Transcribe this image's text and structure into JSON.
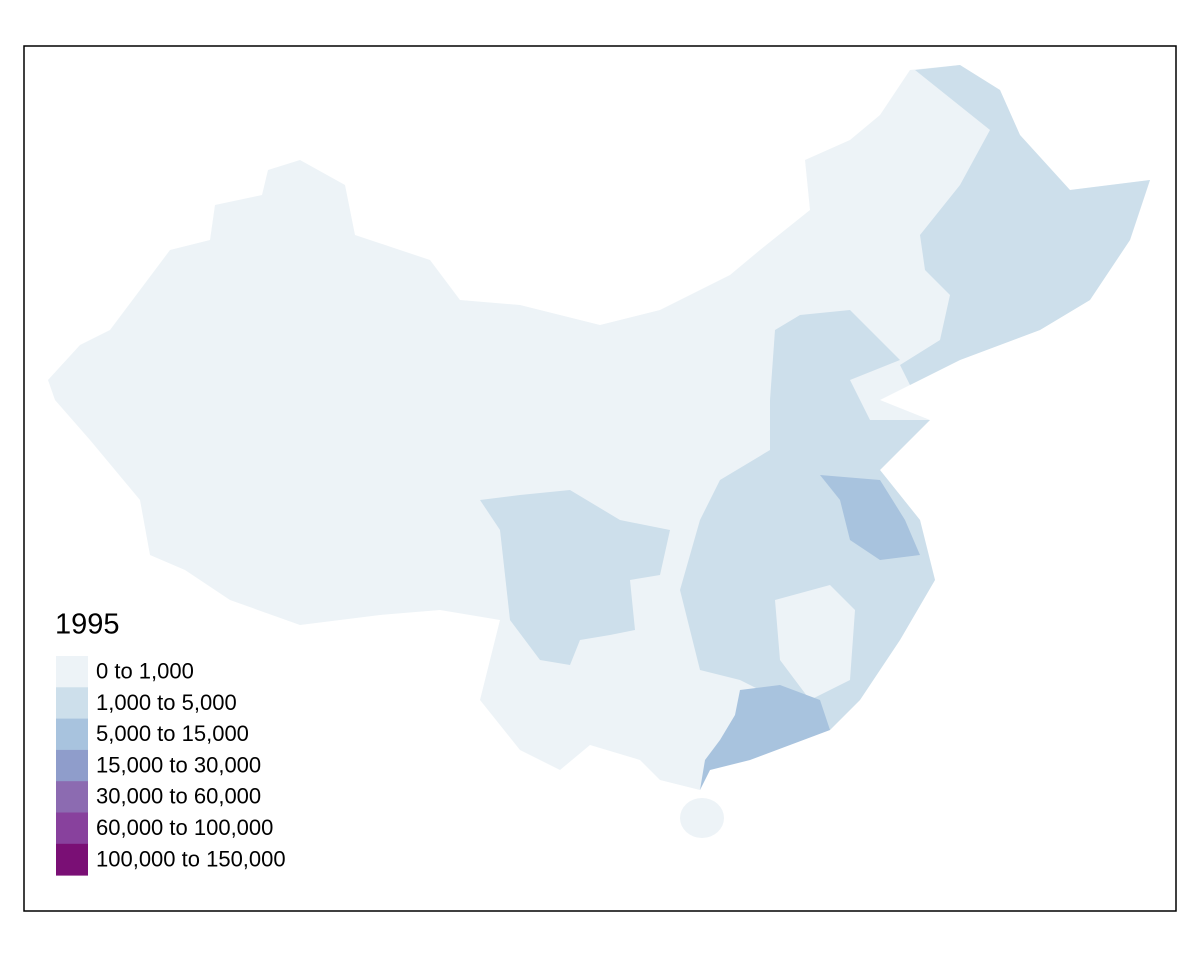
{
  "legend": {
    "title": "1995",
    "items": [
      {
        "label": "0 to 1,000",
        "color": "#edf3f7"
      },
      {
        "label": "1,000 to 5,000",
        "color": "#cddfeb"
      },
      {
        "label": "5,000 to 15,000",
        "color": "#a8c3de"
      },
      {
        "label": "15,000 to 30,000",
        "color": "#8f9dcb"
      },
      {
        "label": "30,000 to 60,000",
        "color": "#8c6bb1"
      },
      {
        "label": "60,000 to 100,000",
        "color": "#88419d"
      },
      {
        "label": "100,000 to 150,000",
        "color": "#7a0f75"
      }
    ]
  }
}
